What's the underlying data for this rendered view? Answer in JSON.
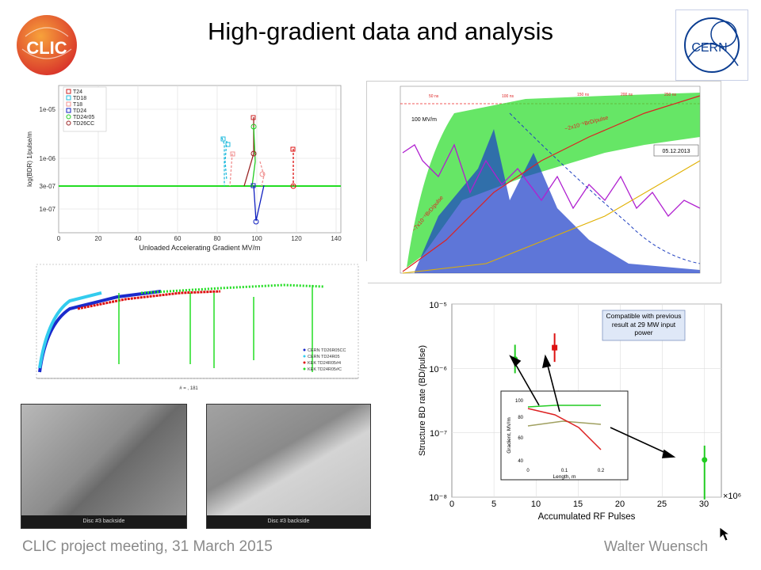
{
  "slide": {
    "title": "High-gradient data and analysis",
    "footer_left": "CLIC project meeting, 31 March 2015",
    "footer_right": "Walter Wuensch"
  },
  "logos": {
    "clic": "CLIC",
    "cern": "CERN"
  },
  "colors": {
    "clic_orange": "#e8532b",
    "cern_blue": "#0b3d91",
    "green": "#22dd22",
    "blue": "#1020c0",
    "red": "#dd1111",
    "magenta": "#b020d0"
  },
  "bdr_plot": {
    "ylabel": "log(BDR) 1/pulse/m",
    "xlabel": "Unloaded Accelerating Gradient MV/m",
    "yticks": [
      "1e-05",
      "1e-06",
      "3e-07",
      "1e-07"
    ],
    "xticks": [
      "0",
      "20",
      "40",
      "60",
      "80",
      "100",
      "120",
      "140"
    ],
    "legend": [
      "T24",
      "TD18",
      "T18",
      "TD24",
      "TD24r05",
      "TD26CC"
    ]
  },
  "history_plot": {
    "annotation_gradient": "100 MV/m",
    "annotation_date": "05.12.2013",
    "annotation_rate_high": "~2x10⁻⁵BrD/pulse",
    "annotation_rate_low": "~7x10⁻⁵BrD/pulse",
    "pulse_labels": [
      "50 ns",
      "100 ns",
      "150 ns",
      "200 ns",
      "250 ns"
    ]
  },
  "conditioning_plot": {
    "xlabel_partial": "# = , 181",
    "legend": [
      "CERN TD26R05CC",
      "CERN TD24R05",
      "KEK TD24R05#4",
      "KEK TD24R05#C"
    ]
  },
  "sem_images": {
    "left_caption": "Disc #3 backside",
    "right_caption": "Disc #3 backside"
  },
  "structure_plot": {
    "ylabel": "Structure BD rate (BD/pulse)",
    "xlabel": "Accumulated RF Pulses",
    "x_multiplier": "×10⁶",
    "yticks": [
      "10⁻⁵",
      "10⁻⁶",
      "10⁻⁷",
      "10⁻⁸"
    ],
    "xticks": [
      "0",
      "5",
      "10",
      "15",
      "20",
      "25",
      "30"
    ],
    "note": "Compatible with previous result at 29 MW input power",
    "inset_ylabel": "Gradient, MV/m",
    "inset_xlabel": "Length, m",
    "inset_yticks": [
      "100",
      "80",
      "60",
      "40"
    ],
    "inset_xticks": [
      "0",
      "0.1",
      "0.2"
    ]
  },
  "chart_data": [
    {
      "type": "scatter",
      "title": "",
      "xlabel": "Unloaded Accelerating Gradient MV/m",
      "ylabel": "log(BDR) 1/pulse/m",
      "xlim": [
        0,
        145
      ],
      "ylog": true,
      "series": [
        {
          "name": "T24",
          "color": "#cc2222",
          "points": [
            [
              120,
              1.5e-06
            ],
            [
              120,
              3e-07
            ]
          ]
        },
        {
          "name": "TD18",
          "color": "#22bbdd",
          "points": [
            [
              83,
              1.3e-06
            ],
            [
              84,
              3e-07
            ],
            [
              85,
              1e-06
            ]
          ]
        },
        {
          "name": "T18",
          "color": "#f09090",
          "points": [
            [
              88,
              1.1e-06
            ],
            [
              89,
              3e-07
            ],
            [
              104,
              4e-07
            ]
          ]
        },
        {
          "name": "TD24",
          "color": "#1020c0",
          "points": [
            [
              100,
              3e-07
            ],
            [
              101,
              5e-08
            ],
            [
              106,
              3e-07
            ]
          ]
        },
        {
          "name": "TD24r05",
          "color": "#22cc22",
          "points": [
            [
              101,
              6e-06
            ],
            [
              102,
              1.2e-06
            ],
            [
              103,
              3e-07
            ]
          ]
        },
        {
          "name": "TD26CC",
          "color": "#992222",
          "points": [
            [
              100,
              1e-05
            ],
            [
              100,
              1.5e-06
            ],
            [
              95,
              3e-07
            ]
          ]
        }
      ]
    },
    {
      "type": "scatter",
      "title": "",
      "xlabel": "Accumulated RF Pulses",
      "ylabel": "Structure BD rate (BD/pulse)",
      "x_multiplier": 1000000,
      "xlim": [
        0,
        32
      ],
      "ylim": [
        1e-08,
        1e-05
      ],
      "ylog": true,
      "series": [
        {
          "name": "",
          "color": "#22cc22",
          "points": [
            [
              7.5,
              1.4e-06
            ],
            [
              30,
              3.8e-08
            ]
          ]
        },
        {
          "name": "",
          "color": "#dd1111",
          "points": [
            [
              12.2,
              2.1e-06
            ]
          ]
        }
      ]
    }
  ]
}
